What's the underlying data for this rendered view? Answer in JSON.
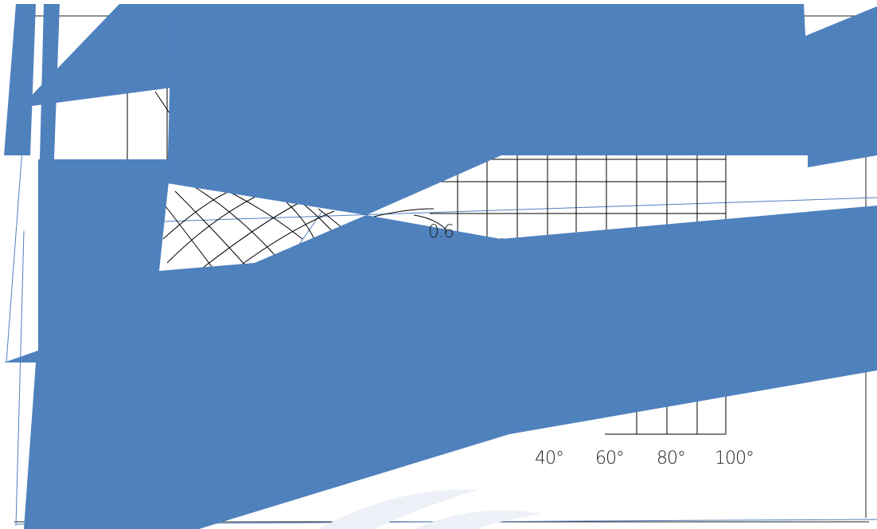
{
  "figure": {
    "background": "#ffffff",
    "fill_color": "#4f81bd",
    "line_color": "#000000",
    "accent_line_color": "#4f81bd"
  },
  "labels": {
    "visible_numeral": "0.6",
    "x_ticks": [
      "40°",
      "60°",
      "80°",
      "100°"
    ]
  }
}
